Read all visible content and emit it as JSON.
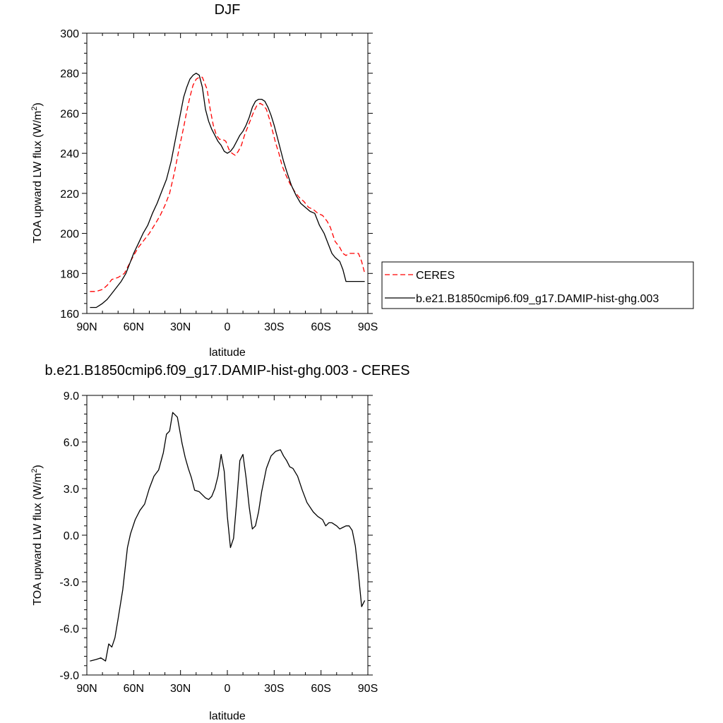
{
  "chart_data": [
    {
      "type": "line",
      "title": "DJF",
      "xlabel": "latitude",
      "ylabel": "TOA upward LW flux (W/m",
      "ylabel_sup": "2",
      "ylabel_end": ")",
      "xlim": [
        -90,
        90
      ],
      "ylim": [
        160,
        300
      ],
      "xticks": [
        {
          "value": -90,
          "label": "90N"
        },
        {
          "value": -60,
          "label": "60N"
        },
        {
          "value": -30,
          "label": "30N"
        },
        {
          "value": 0,
          "label": "0"
        },
        {
          "value": 30,
          "label": "30S"
        },
        {
          "value": 60,
          "label": "60S"
        },
        {
          "value": 90,
          "label": "90S"
        }
      ],
      "yticks": [
        {
          "value": 160,
          "label": "160"
        },
        {
          "value": 180,
          "label": "180"
        },
        {
          "value": 200,
          "label": "200"
        },
        {
          "value": 220,
          "label": "220"
        },
        {
          "value": 240,
          "label": "240"
        },
        {
          "value": 260,
          "label": "260"
        },
        {
          "value": 280,
          "label": "280"
        },
        {
          "value": 300,
          "label": "300"
        }
      ],
      "grid": false,
      "legend": "right",
      "series": [
        {
          "name": "CERES",
          "color": "#ff0000",
          "dash": true,
          "x": [
            -88,
            -84,
            -80,
            -77,
            -74,
            -70,
            -66,
            -62,
            -60,
            -57,
            -54,
            -50,
            -46,
            -43,
            -40,
            -37,
            -34,
            -31,
            -28,
            -26,
            -24,
            -22,
            -20,
            -18,
            -16,
            -13,
            -11,
            -9,
            -7,
            -5,
            -3,
            -1,
            1,
            3,
            5,
            7,
            9,
            11,
            13,
            15,
            17,
            19,
            21,
            23,
            25,
            27,
            29,
            31,
            33,
            35,
            37,
            40,
            43,
            46,
            49,
            52,
            55,
            58,
            61,
            64,
            66,
            69,
            72,
            74,
            76,
            78,
            80,
            82,
            84,
            86,
            88
          ],
          "y": [
            171,
            171,
            172,
            174,
            177,
            178,
            180,
            186,
            189,
            193,
            196,
            200,
            205,
            209,
            214,
            220,
            230,
            242,
            253,
            261,
            268,
            274,
            277,
            278,
            278,
            272,
            262,
            254,
            249,
            247,
            247,
            246,
            242,
            240,
            239,
            241,
            244,
            249,
            253,
            257,
            261,
            264,
            265,
            264,
            262,
            257,
            251,
            245,
            240,
            234,
            230,
            225,
            221,
            218,
            216,
            213,
            212,
            210,
            209,
            206,
            203,
            196,
            193,
            190,
            189,
            190,
            190,
            190,
            190,
            186,
            180
          ]
        },
        {
          "name": "b.e21.B1850cmip6.f09_g17.DAMIP-hist-ghg.003",
          "color": "#000000",
          "dash": false,
          "x": [
            -88,
            -84,
            -82,
            -80,
            -77,
            -74,
            -71,
            -68,
            -65,
            -62,
            -60,
            -57,
            -54,
            -51,
            -48,
            -45,
            -42,
            -39,
            -36,
            -33,
            -30,
            -28,
            -26,
            -24,
            -22,
            -20,
            -18,
            -16,
            -14,
            -12,
            -10,
            -8,
            -6,
            -4,
            -2,
            0,
            2,
            4,
            6,
            8,
            10,
            12,
            14,
            16,
            18,
            20,
            22,
            24,
            26,
            28,
            30,
            32,
            34,
            36,
            38,
            41,
            44,
            47,
            50,
            53,
            56,
            59,
            62,
            65,
            67,
            69,
            72,
            74,
            76,
            78,
            80,
            82,
            84,
            86,
            88
          ],
          "y": [
            163,
            163,
            164,
            165,
            167,
            170,
            173,
            176,
            180,
            186,
            190,
            195,
            200,
            204,
            210,
            215,
            221,
            227,
            236,
            248,
            260,
            268,
            273,
            277,
            279,
            280,
            279,
            273,
            262,
            256,
            252,
            249,
            246,
            244,
            241,
            240,
            241,
            243,
            246,
            249,
            251,
            254,
            258,
            263,
            266,
            267,
            267,
            266,
            263,
            259,
            254,
            248,
            242,
            236,
            231,
            224,
            219,
            215,
            213,
            211,
            210,
            204,
            200,
            194,
            190,
            188,
            186,
            182,
            176,
            176,
            176,
            176,
            176,
            176,
            176
          ]
        }
      ]
    },
    {
      "type": "line",
      "title": "b.e21.B1850cmip6.f09_g17.DAMIP-hist-ghg.003 - CERES",
      "xlabel": "latitude",
      "ylabel": "TOA upward LW flux (W/m",
      "ylabel_sup": "2",
      "ylabel_end": ")",
      "xlim": [
        -90,
        90
      ],
      "ylim": [
        -9,
        9
      ],
      "xticks": [
        {
          "value": -90,
          "label": "90N"
        },
        {
          "value": -60,
          "label": "60N"
        },
        {
          "value": -30,
          "label": "30N"
        },
        {
          "value": 0,
          "label": "0"
        },
        {
          "value": 30,
          "label": "30S"
        },
        {
          "value": 60,
          "label": "60S"
        },
        {
          "value": 90,
          "label": "90S"
        }
      ],
      "yticks": [
        {
          "value": -9,
          "label": "-9.0"
        },
        {
          "value": -6,
          "label": "-6.0"
        },
        {
          "value": -3,
          "label": "-3.0"
        },
        {
          "value": 0,
          "label": "0.0"
        },
        {
          "value": 3,
          "label": "3.0"
        },
        {
          "value": 6,
          "label": "6.0"
        },
        {
          "value": 9,
          "label": "9.0"
        }
      ],
      "grid": false,
      "legend": "none",
      "series": [
        {
          "color": "#000000",
          "dash": false,
          "x": [
            -88,
            -84,
            -81,
            -78,
            -76,
            -74,
            -72,
            -70,
            -67,
            -64,
            -62,
            -59,
            -56,
            -53,
            -50,
            -47,
            -44,
            -41,
            -39,
            -37,
            -35,
            -32,
            -29,
            -27,
            -25,
            -23,
            -21,
            -18,
            -16,
            -14,
            -12,
            -10,
            -8,
            -6,
            -4,
            -2,
            0,
            2,
            4,
            6,
            8,
            10,
            12,
            14,
            16,
            18,
            20,
            22,
            25,
            28,
            31,
            34,
            36,
            38,
            40,
            42,
            45,
            48,
            51,
            55,
            58,
            61,
            63,
            65,
            67,
            70,
            72,
            74,
            76,
            78,
            80,
            82,
            84,
            86,
            88
          ],
          "y": [
            -8.1,
            -8.0,
            -7.9,
            -8.1,
            -7.0,
            -7.2,
            -6.6,
            -5.4,
            -3.5,
            -0.8,
            0.1,
            1.0,
            1.6,
            2.0,
            3.0,
            3.8,
            4.2,
            5.3,
            6.5,
            6.7,
            7.9,
            7.6,
            5.9,
            5.0,
            4.3,
            3.7,
            2.9,
            2.8,
            2.6,
            2.4,
            2.3,
            2.5,
            3.0,
            3.8,
            5.2,
            4.1,
            1.2,
            -0.8,
            -0.2,
            2.2,
            4.8,
            5.2,
            3.7,
            1.8,
            0.4,
            0.6,
            1.5,
            2.8,
            4.3,
            5.1,
            5.4,
            5.5,
            5.1,
            4.8,
            4.4,
            4.3,
            3.8,
            2.9,
            2.1,
            1.5,
            1.2,
            1.0,
            0.6,
            0.8,
            0.8,
            0.6,
            0.4,
            0.5,
            0.6,
            0.6,
            0.3,
            -0.7,
            -2.5,
            -4.6,
            -4.2
          ]
        }
      ]
    }
  ]
}
